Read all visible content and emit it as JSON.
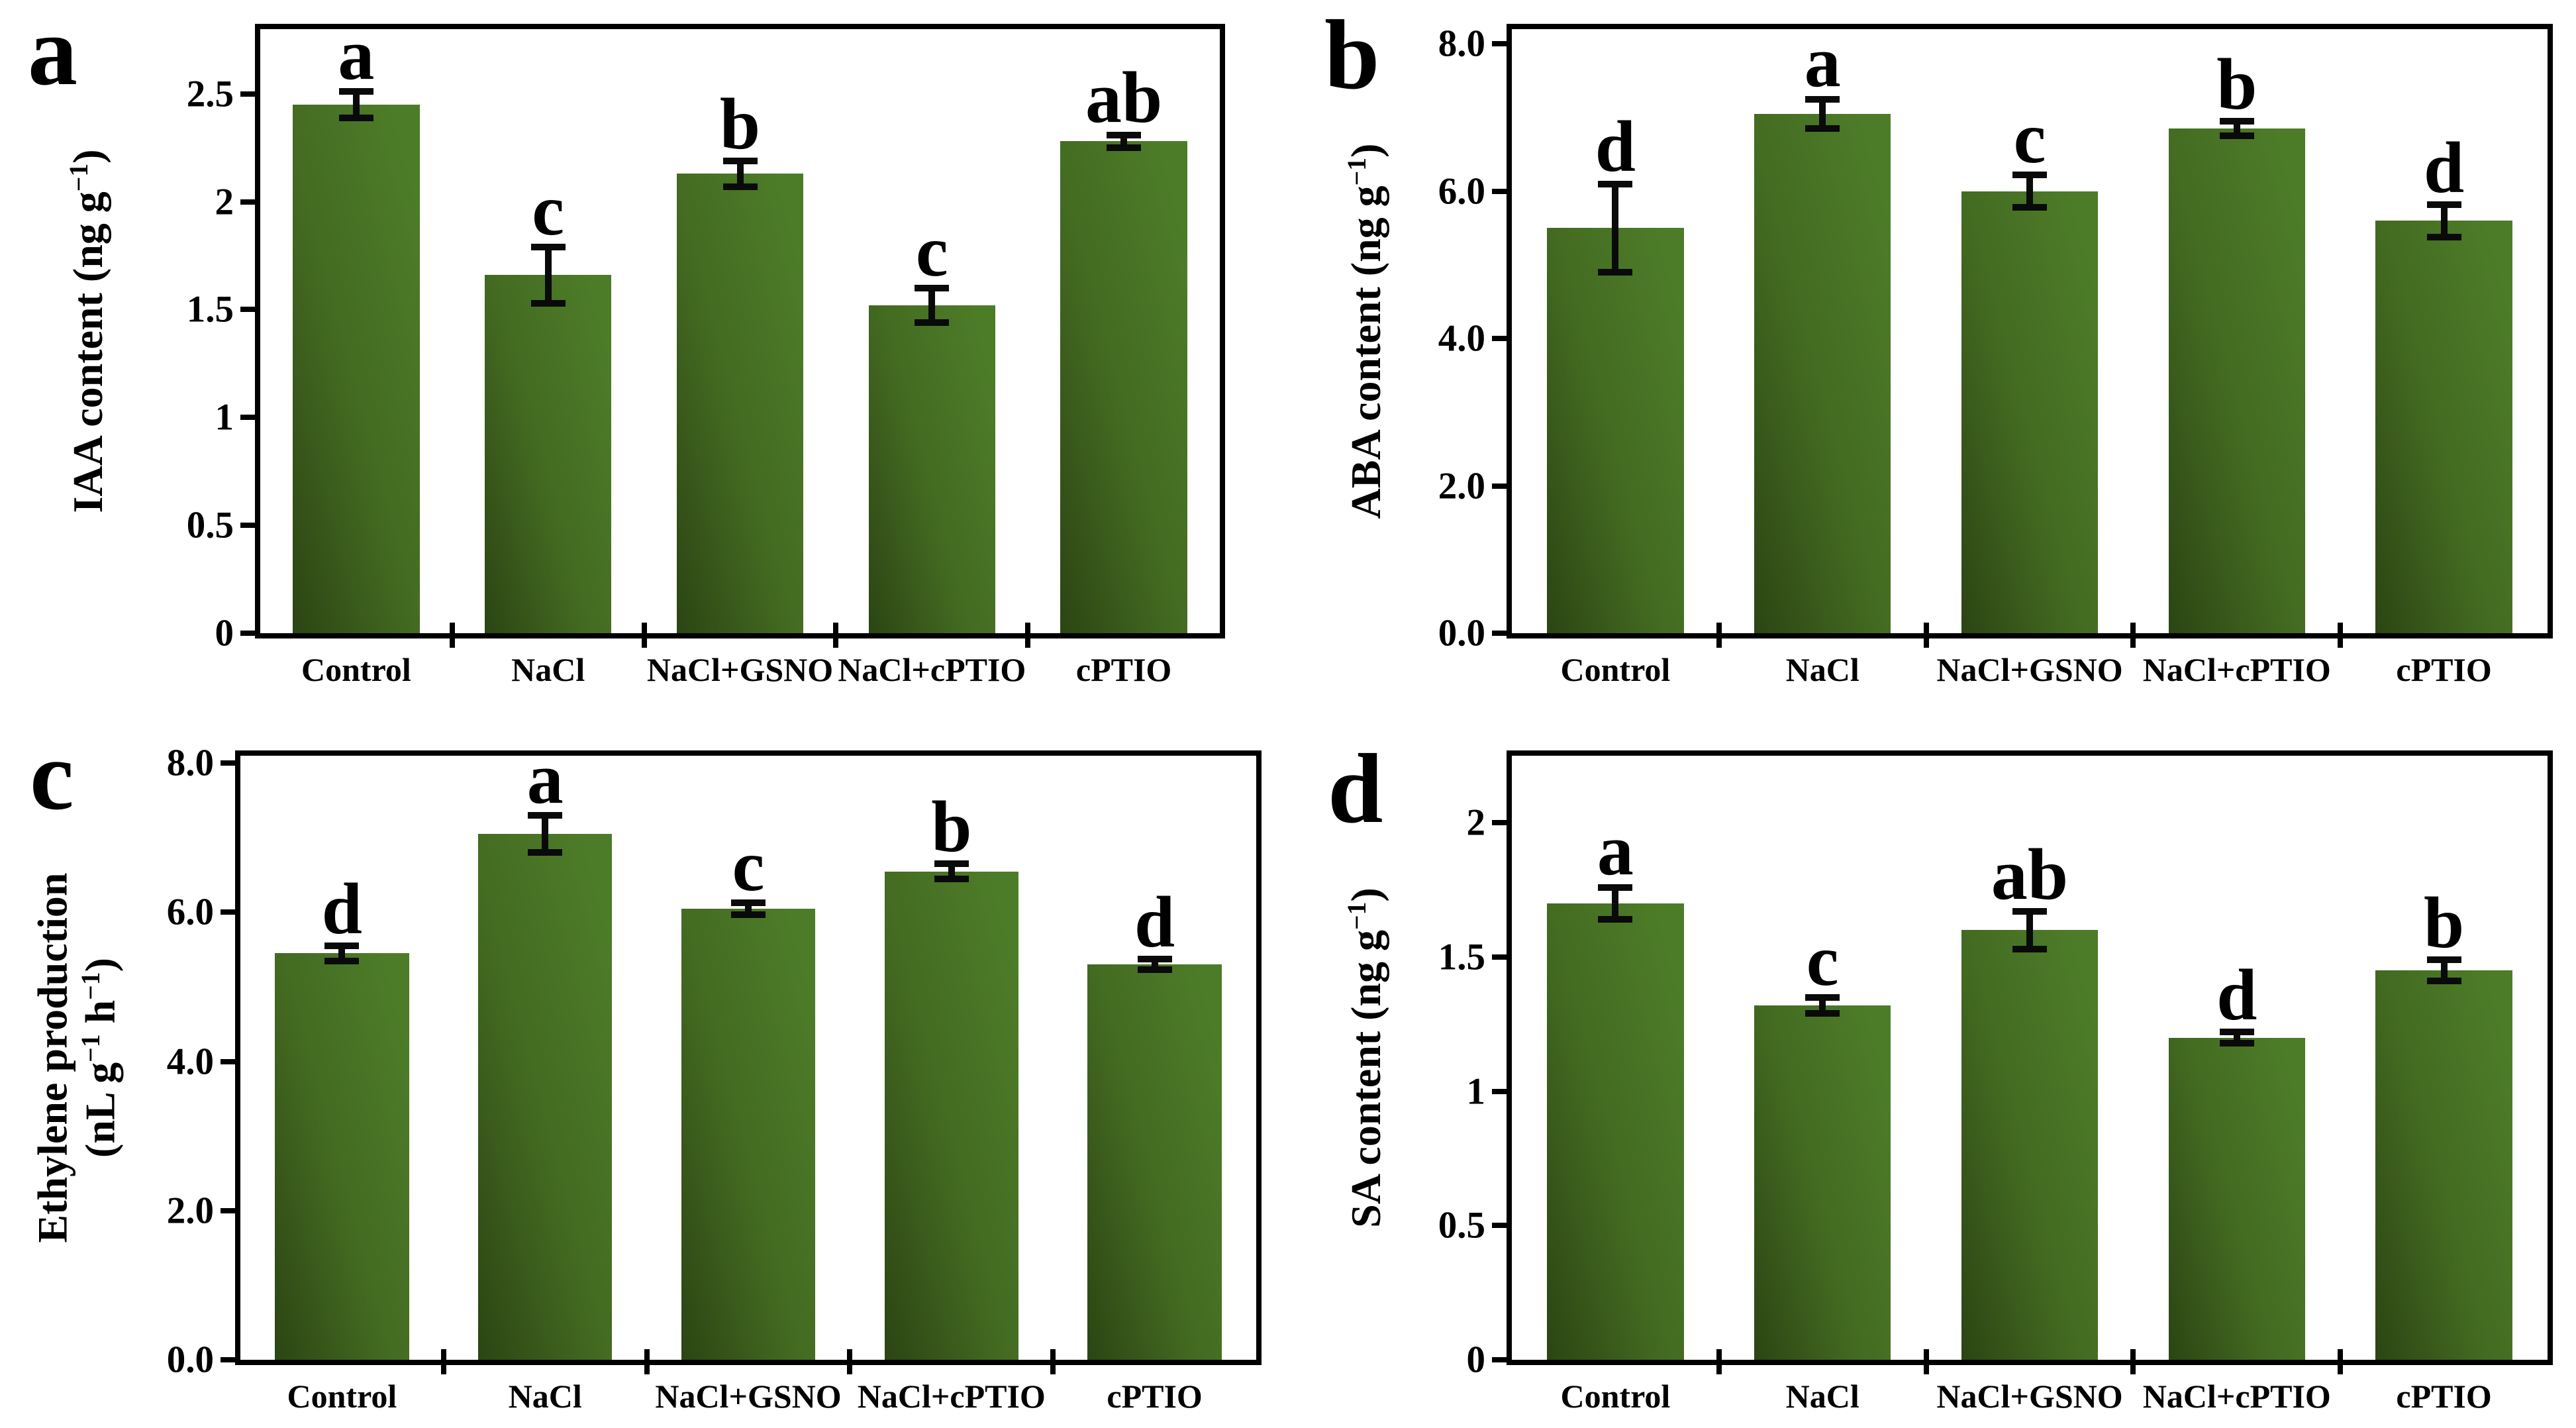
{
  "figure": {
    "background": "#ffffff",
    "axis_color": "#000000",
    "error_bar_color": "#0a0a0a",
    "bar_gradient": {
      "dark": "#2b4513",
      "mid": "#436a21",
      "light": "#4d7c28"
    }
  },
  "chart_data": [
    {
      "type": "bar",
      "panel_label": "a",
      "title": "",
      "xlabel": "",
      "ylabel": "IAA content (ng g⁻¹)",
      "ylabel_lines": [
        [
          {
            "t": "IAA content (ng g"
          },
          {
            "t": "−1",
            "sup": true
          },
          {
            "t": ")"
          }
        ]
      ],
      "categories": [
        "Control",
        "NaCl",
        "NaCl+GSNO",
        "NaCl+cPTIO",
        "cPTIO"
      ],
      "values": [
        2.45,
        1.66,
        2.13,
        1.52,
        2.28
      ],
      "errors": [
        0.06,
        0.13,
        0.06,
        0.08,
        0.03
      ],
      "sig_letters": [
        "a",
        "c",
        "b",
        "c",
        "ab"
      ],
      "yticks": [
        {
          "v": 0,
          "label": "0"
        },
        {
          "v": 0.5,
          "label": "0.5"
        },
        {
          "v": 1,
          "label": "1"
        },
        {
          "v": 1.5,
          "label": "1.5"
        },
        {
          "v": 2,
          "label": "2"
        },
        {
          "v": 2.5,
          "label": "2.5"
        }
      ],
      "ylim": [
        0,
        2.8
      ],
      "grid": false,
      "legend": null
    },
    {
      "type": "bar",
      "panel_label": "b",
      "title": "",
      "xlabel": "",
      "ylabel": "ABA content (ng g⁻¹)",
      "ylabel_lines": [
        [
          {
            "t": "ABA content (ng g"
          },
          {
            "t": "−1",
            "sup": true
          },
          {
            "t": ")"
          }
        ]
      ],
      "categories": [
        "Control",
        "NaCl",
        "NaCl+GSNO",
        "NaCl+cPTIO",
        "cPTIO"
      ],
      "values": [
        5.5,
        7.05,
        6.0,
        6.85,
        5.6
      ],
      "errors": [
        0.6,
        0.2,
        0.22,
        0.1,
        0.22
      ],
      "sig_letters": [
        "d",
        "a",
        "c",
        "b",
        "d"
      ],
      "yticks": [
        {
          "v": 0,
          "label": "0.0"
        },
        {
          "v": 2,
          "label": "2.0"
        },
        {
          "v": 4,
          "label": "4.0"
        },
        {
          "v": 6,
          "label": "6.0"
        },
        {
          "v": 8,
          "label": "8.0"
        }
      ],
      "ylim": [
        0,
        8.2
      ],
      "grid": false,
      "legend": null
    },
    {
      "type": "bar",
      "panel_label": "c",
      "title": "",
      "xlabel": "",
      "ylabel": "Ethylene production (nL g⁻¹ h⁻¹)",
      "ylabel_lines": [
        [
          {
            "t": "Ethylene production"
          }
        ],
        [
          {
            "t": "(nL g"
          },
          {
            "t": "−1",
            "sup": true
          },
          {
            "t": " h"
          },
          {
            "t": "−1",
            "sup": true
          },
          {
            "t": ")"
          }
        ]
      ],
      "categories": [
        "Control",
        "NaCl",
        "NaCl+GSNO",
        "NaCl+cPTIO",
        "cPTIO"
      ],
      "values": [
        5.45,
        7.05,
        6.05,
        6.55,
        5.3
      ],
      "errors": [
        0.1,
        0.25,
        0.08,
        0.1,
        0.07
      ],
      "sig_letters": [
        "d",
        "a",
        "c",
        "b",
        "d"
      ],
      "yticks": [
        {
          "v": 0,
          "label": "0.0"
        },
        {
          "v": 2,
          "label": "2.0"
        },
        {
          "v": 4,
          "label": "4.0"
        },
        {
          "v": 6,
          "label": "6.0"
        },
        {
          "v": 8,
          "label": "8.0"
        }
      ],
      "ylim": [
        0,
        8.1
      ],
      "grid": false,
      "legend": null
    },
    {
      "type": "bar",
      "panel_label": "d",
      "title": "",
      "xlabel": "",
      "ylabel": "SA content (ng g⁻¹)",
      "ylabel_lines": [
        [
          {
            "t": "SA content (ng g"
          },
          {
            "t": "−1",
            "sup": true
          },
          {
            "t": ")"
          }
        ]
      ],
      "categories": [
        "Control",
        "NaCl",
        "NaCl+GSNO",
        "NaCl+cPTIO",
        "cPTIO"
      ],
      "values": [
        1.7,
        1.32,
        1.6,
        1.2,
        1.45
      ],
      "errors": [
        0.06,
        0.03,
        0.07,
        0.02,
        0.04
      ],
      "sig_letters": [
        "a",
        "c",
        "ab",
        "d",
        "b"
      ],
      "yticks": [
        {
          "v": 0,
          "label": "0"
        },
        {
          "v": 0.5,
          "label": "0.5"
        },
        {
          "v": 1,
          "label": "1"
        },
        {
          "v": 1.5,
          "label": "1.5"
        },
        {
          "v": 2,
          "label": "2"
        }
      ],
      "ylim": [
        0,
        2.25
      ],
      "grid": false,
      "legend": null
    }
  ]
}
